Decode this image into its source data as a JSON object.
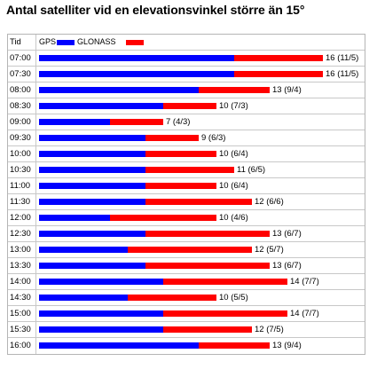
{
  "title": "Antal satelliter vid en elevationsvinkel större än 15°",
  "header": {
    "time_label": "Tid",
    "gps_label": "GPS",
    "glonass_label": "GLONASS"
  },
  "colors": {
    "gps": "#0000ff",
    "glonass": "#ff0000"
  },
  "chart_data": {
    "type": "bar",
    "stacked": true,
    "orientation": "horizontal",
    "title": "Antal satelliter vid en elevationsvinkel större än 15°",
    "categories": [
      "07:00",
      "07:30",
      "08:00",
      "08:30",
      "09:00",
      "09:30",
      "10:00",
      "10:30",
      "11:00",
      "11:30",
      "12:00",
      "12:30",
      "13:00",
      "13:30",
      "14:00",
      "14:30",
      "15:00",
      "15:30",
      "16:00"
    ],
    "series": [
      {
        "name": "GPS",
        "values": [
          11,
          11,
          9,
          7,
          4,
          6,
          6,
          6,
          6,
          6,
          4,
          6,
          5,
          6,
          7,
          5,
          7,
          7,
          9
        ]
      },
      {
        "name": "GLONASS",
        "values": [
          5,
          5,
          4,
          3,
          3,
          3,
          4,
          5,
          4,
          6,
          6,
          7,
          7,
          7,
          7,
          5,
          7,
          5,
          4
        ]
      }
    ],
    "labels": [
      "16 (11/5)",
      "16 (11/5)",
      "13 (9/4)",
      "10 (7/3)",
      "7 (4/3)",
      "9 (6/3)",
      "10 (6/4)",
      "11 (6/5)",
      "10 (6/4)",
      "12 (6/6)",
      "10 (4/6)",
      "13 (6/7)",
      "12 (5/7)",
      "13 (6/7)",
      "14 (7/7)",
      "10 (5/5)",
      "14 (7/7)",
      "12 (7/5)",
      "13 (9/4)"
    ],
    "xlim": [
      0,
      16.5
    ],
    "legend": "top-left"
  }
}
